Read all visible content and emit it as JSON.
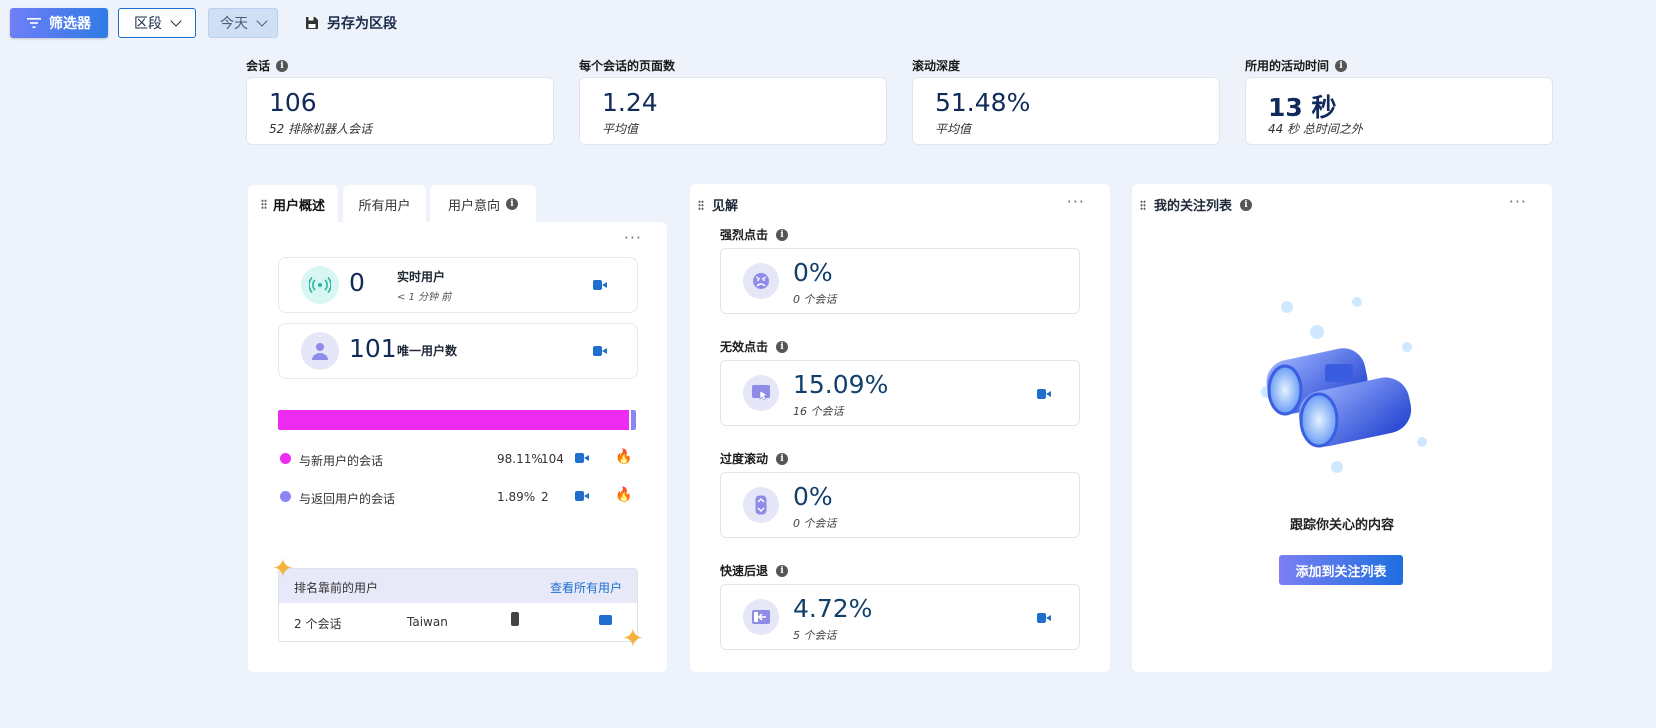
{
  "toolbar": {
    "filter_label": "筛选器",
    "segment_label": "区段",
    "date_label": "今天",
    "save_segment_label": "另存为区段"
  },
  "kpis": [
    {
      "label": "会话",
      "value": "106",
      "sub": "52 排除机器人会话"
    },
    {
      "label": "每个会话的页面数",
      "value": "1.24",
      "sub": "平均值"
    },
    {
      "label": "滚动深度",
      "value": "51.48%",
      "sub": "平均值"
    },
    {
      "label": "所用的活动时间",
      "value": "13 秒",
      "sub": "44 秒 总时间之外"
    }
  ],
  "users_panel": {
    "tabs": [
      "用户概述",
      "所有用户",
      "用户意向"
    ],
    "more": "···",
    "live": {
      "value": "0",
      "label": "实时用户",
      "sub": "< 1 分钟 前"
    },
    "unique": {
      "value": "101",
      "label": "唯一用户数"
    },
    "split": {
      "new_pct": 98.11,
      "returning_pct": 1.89
    },
    "legend": [
      {
        "label": "与新用户的会话",
        "pct": "98.11%",
        "count": "104",
        "color": "#ee2bf0"
      },
      {
        "label": "与返回用户的会话",
        "pct": "1.89%",
        "count": "2",
        "color": "#8c84f3"
      }
    ],
    "top_users": {
      "title": "排名靠前的用户",
      "link": "查看所有用户",
      "row": {
        "sessions": "2 个会话",
        "country": "Taiwan"
      }
    }
  },
  "insights": {
    "title": "见解",
    "more": "···",
    "items": [
      {
        "label": "强烈点击",
        "value": "0%",
        "sub": "0 个会话",
        "icon": "angry-face-icon",
        "has_video": false
      },
      {
        "label": "无效点击",
        "value": "15.09%",
        "sub": "16 个会话",
        "icon": "dead-click-icon",
        "has_video": true
      },
      {
        "label": "过度滚动",
        "value": "0%",
        "sub": "0 个会话",
        "icon": "scroll-icon",
        "has_video": false
      },
      {
        "label": "快速后退",
        "value": "4.72%",
        "sub": "5 个会话",
        "icon": "quick-back-icon",
        "has_video": true
      }
    ]
  },
  "watchlist": {
    "title": "我的关注列表",
    "more": "···",
    "empty_text": "跟踪你关心的内容",
    "add_button": "添加到关注列表"
  }
}
